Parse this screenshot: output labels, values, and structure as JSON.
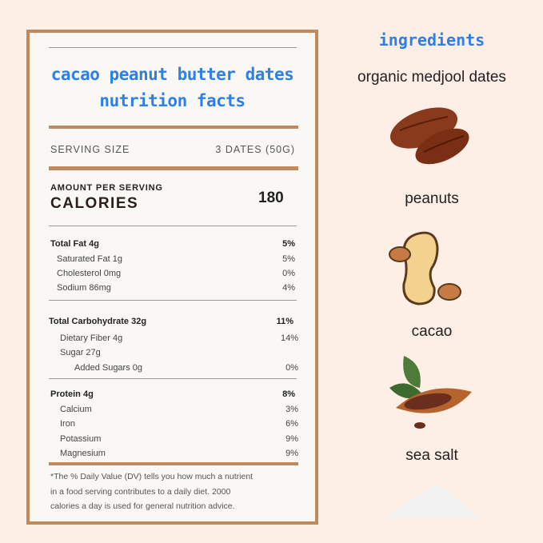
{
  "label": {
    "title_line1": "cacao peanut butter dates",
    "title_line2": "nutrition facts",
    "serving_size_label": "SERVING SIZE",
    "serving_size_value": "3 DATES (50G)",
    "amount_per_serving": "AMOUNT PER SERVING",
    "calories_label": "CALORIES",
    "calories_value": "180",
    "rows": [
      {
        "name": "Total Fat 4g",
        "dv": "5%"
      },
      {
        "name": "Saturated Fat 1g",
        "dv": "5%"
      },
      {
        "name": "Cholesterol 0mg",
        "dv": "0%"
      },
      {
        "name": "Sodium 86mg",
        "dv": "4%"
      },
      {
        "name": "Total Carbohydrate 32g",
        "dv": "11%"
      },
      {
        "name": "Dietary Fiber 4g",
        "dv": "14%"
      },
      {
        "name": "Sugar 27g",
        "dv": ""
      },
      {
        "name": "Added Sugars 0g",
        "dv": "0%"
      },
      {
        "name": "Protein 4g",
        "dv": "8%"
      },
      {
        "name": "Calcium",
        "dv": "3%"
      },
      {
        "name": "Iron",
        "dv": "6%"
      },
      {
        "name": "Potassium",
        "dv": "9%"
      },
      {
        "name": "Magnesium",
        "dv": "9%"
      }
    ],
    "footnote_lines": [
      "*The % Daily Value (DV) tells you how much a nutrient",
      "in a food serving contributes to a daily diet. 2000",
      "calories a day is used for general nutrition advice."
    ]
  },
  "ingredients": {
    "heading": "ingredients",
    "items": [
      {
        "name": "organic medjool dates",
        "icon": "dates-icon"
      },
      {
        "name": "peanuts",
        "icon": "peanut-icon"
      },
      {
        "name": "cacao",
        "icon": "cacao-pod-icon"
      },
      {
        "name": "sea salt",
        "icon": "salt-pile-icon"
      }
    ]
  },
  "colors": {
    "accent_blue": "#2f80e4",
    "border_brown": "#c08a5e",
    "background": "#fdeee6"
  }
}
